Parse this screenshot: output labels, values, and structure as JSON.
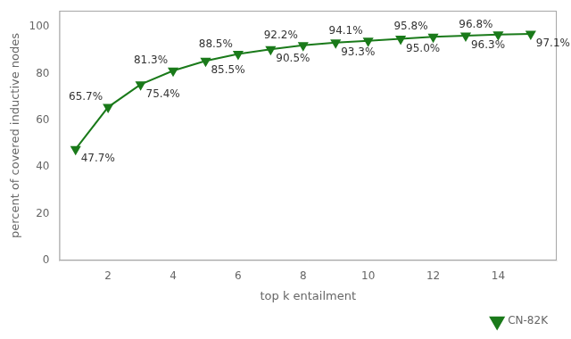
{
  "chart_data": {
    "type": "line",
    "x": [
      1,
      2,
      3,
      4,
      5,
      6,
      7,
      8,
      9,
      10,
      11,
      12,
      13,
      14,
      15
    ],
    "series": [
      {
        "name": "CN-82K",
        "color": "#1a7a1a",
        "marker": "triangle-down",
        "values": [
          47.7,
          65.7,
          75.4,
          81.3,
          85.5,
          88.5,
          90.5,
          92.2,
          93.3,
          94.1,
          95.0,
          95.8,
          96.3,
          96.8,
          97.1
        ],
        "value_labels": [
          "47.7%",
          "65.7%",
          "75.4%",
          "81.3%",
          "85.5%",
          "88.5%",
          "90.5%",
          "92.2%",
          "93.3%",
          "94.1%",
          "95.0%",
          "95.8%",
          "96.3%",
          "96.8%",
          "97.1%"
        ]
      }
    ],
    "xlabel": "top k entailment",
    "ylabel": "percent of covered inductive nodes",
    "xlim": [
      0.5,
      15.8
    ],
    "ylim": [
      0,
      107
    ],
    "xticks": [
      2,
      4,
      6,
      8,
      10,
      12,
      14
    ],
    "yticks": [
      0,
      20,
      40,
      60,
      80,
      100
    ],
    "grid": false,
    "legend": "lower right",
    "data_labels": true
  }
}
